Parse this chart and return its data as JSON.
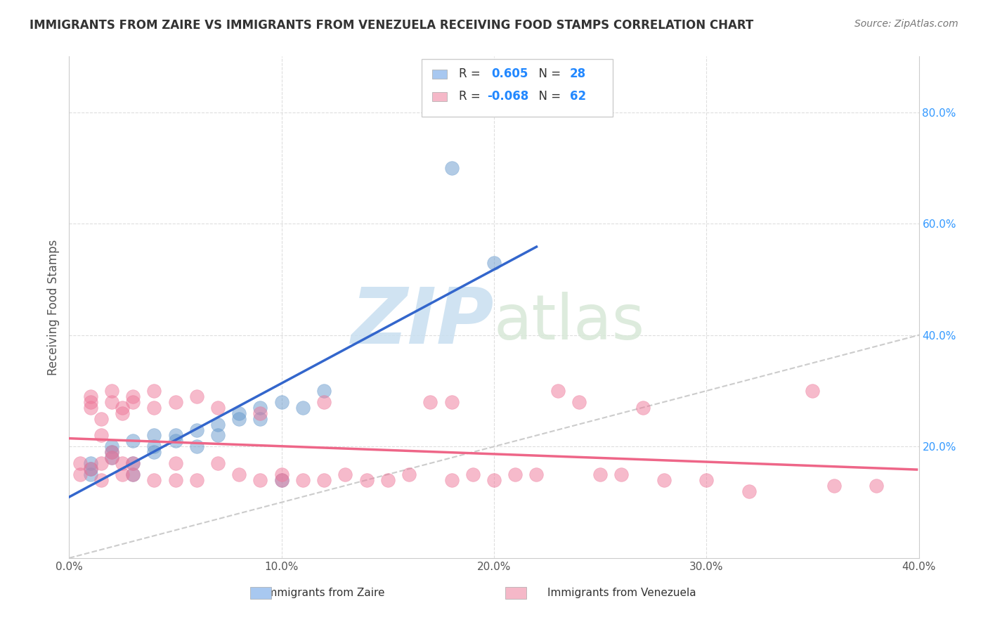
{
  "title": "IMMIGRANTS FROM ZAIRE VS IMMIGRANTS FROM VENEZUELA RECEIVING FOOD STAMPS CORRELATION CHART",
  "source": "Source: ZipAtlas.com",
  "xlabel": "",
  "ylabel": "Receiving Food Stamps",
  "xlim": [
    0.0,
    0.4
  ],
  "ylim": [
    0.0,
    0.9
  ],
  "xtick_labels": [
    "0.0%",
    "10.0%",
    "20.0%",
    "30.0%",
    "40.0%"
  ],
  "xtick_values": [
    0.0,
    0.1,
    0.2,
    0.3,
    0.4
  ],
  "ytick_labels": [
    "20.0%",
    "40.0%",
    "60.0%",
    "80.0%"
  ],
  "ytick_values": [
    0.2,
    0.4,
    0.6,
    0.8
  ],
  "legend_color1": "#a8c8f0",
  "legend_color2": "#f5b8c8",
  "background_color": "#ffffff",
  "grid_color": "#d0d0d0",
  "zaire_color": "#6699cc",
  "venezuela_color": "#ee7799",
  "line_zaire_color": "#3366cc",
  "line_venezuela_color": "#ee6688",
  "diag_line_color": "#cccccc",
  "zaire_points": [
    [
      0.01,
      0.17
    ],
    [
      0.01,
      0.16
    ],
    [
      0.01,
      0.15
    ],
    [
      0.02,
      0.19
    ],
    [
      0.02,
      0.2
    ],
    [
      0.02,
      0.18
    ],
    [
      0.03,
      0.21
    ],
    [
      0.03,
      0.17
    ],
    [
      0.03,
      0.15
    ],
    [
      0.04,
      0.22
    ],
    [
      0.04,
      0.19
    ],
    [
      0.04,
      0.2
    ],
    [
      0.05,
      0.22
    ],
    [
      0.05,
      0.21
    ],
    [
      0.06,
      0.23
    ],
    [
      0.06,
      0.2
    ],
    [
      0.07,
      0.22
    ],
    [
      0.07,
      0.24
    ],
    [
      0.08,
      0.25
    ],
    [
      0.08,
      0.26
    ],
    [
      0.09,
      0.27
    ],
    [
      0.09,
      0.25
    ],
    [
      0.1,
      0.28
    ],
    [
      0.1,
      0.14
    ],
    [
      0.11,
      0.27
    ],
    [
      0.12,
      0.3
    ],
    [
      0.2,
      0.53
    ],
    [
      0.18,
      0.7
    ]
  ],
  "venezuela_points": [
    [
      0.005,
      0.17
    ],
    [
      0.005,
      0.15
    ],
    [
      0.01,
      0.28
    ],
    [
      0.01,
      0.16
    ],
    [
      0.01,
      0.27
    ],
    [
      0.01,
      0.29
    ],
    [
      0.015,
      0.25
    ],
    [
      0.015,
      0.22
    ],
    [
      0.015,
      0.17
    ],
    [
      0.015,
      0.14
    ],
    [
      0.02,
      0.19
    ],
    [
      0.02,
      0.18
    ],
    [
      0.02,
      0.28
    ],
    [
      0.02,
      0.3
    ],
    [
      0.025,
      0.26
    ],
    [
      0.025,
      0.27
    ],
    [
      0.025,
      0.17
    ],
    [
      0.025,
      0.15
    ],
    [
      0.03,
      0.29
    ],
    [
      0.03,
      0.28
    ],
    [
      0.03,
      0.17
    ],
    [
      0.03,
      0.15
    ],
    [
      0.04,
      0.14
    ],
    [
      0.04,
      0.3
    ],
    [
      0.04,
      0.27
    ],
    [
      0.05,
      0.28
    ],
    [
      0.05,
      0.17
    ],
    [
      0.05,
      0.14
    ],
    [
      0.06,
      0.14
    ],
    [
      0.06,
      0.29
    ],
    [
      0.07,
      0.27
    ],
    [
      0.07,
      0.17
    ],
    [
      0.08,
      0.15
    ],
    [
      0.09,
      0.14
    ],
    [
      0.09,
      0.26
    ],
    [
      0.1,
      0.15
    ],
    [
      0.1,
      0.14
    ],
    [
      0.11,
      0.14
    ],
    [
      0.12,
      0.28
    ],
    [
      0.12,
      0.14
    ],
    [
      0.13,
      0.15
    ],
    [
      0.14,
      0.14
    ],
    [
      0.15,
      0.14
    ],
    [
      0.16,
      0.15
    ],
    [
      0.17,
      0.28
    ],
    [
      0.18,
      0.14
    ],
    [
      0.18,
      0.28
    ],
    [
      0.19,
      0.15
    ],
    [
      0.2,
      0.14
    ],
    [
      0.21,
      0.15
    ],
    [
      0.22,
      0.15
    ],
    [
      0.23,
      0.3
    ],
    [
      0.24,
      0.28
    ],
    [
      0.25,
      0.15
    ],
    [
      0.26,
      0.15
    ],
    [
      0.27,
      0.27
    ],
    [
      0.28,
      0.14
    ],
    [
      0.3,
      0.14
    ],
    [
      0.32,
      0.12
    ],
    [
      0.35,
      0.3
    ],
    [
      0.36,
      0.13
    ],
    [
      0.38,
      0.13
    ]
  ]
}
